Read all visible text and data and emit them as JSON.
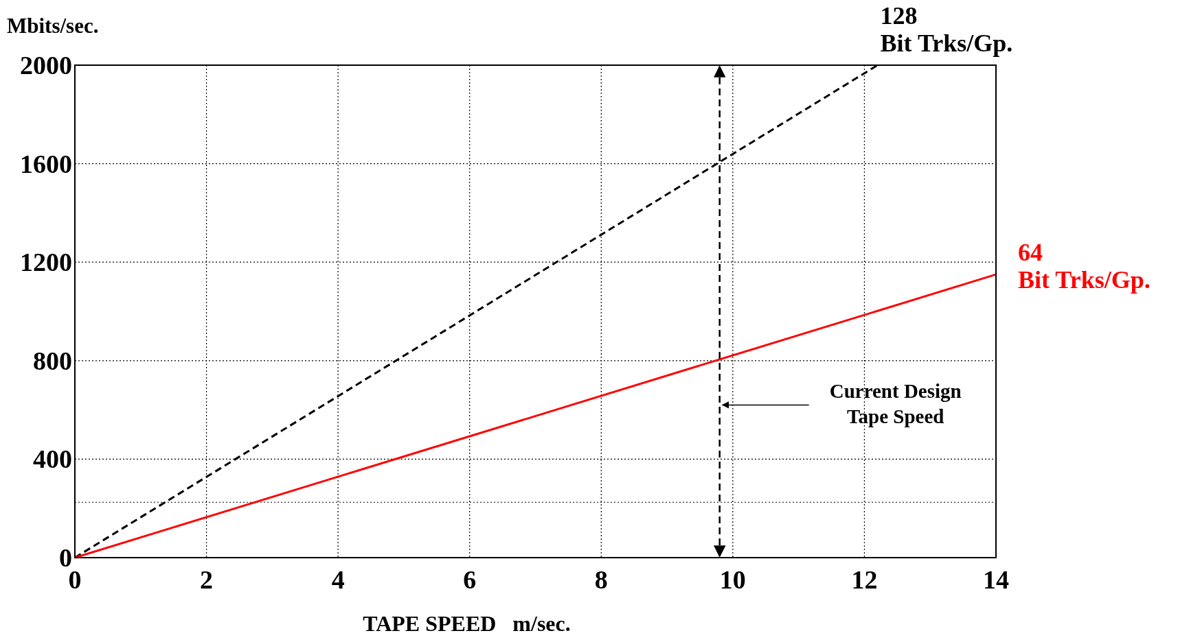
{
  "chart_data": {
    "type": "line",
    "xlabel": "TAPE SPEED   m/sec.",
    "ylabel": "Mbits/sec.",
    "xlim": [
      0,
      14
    ],
    "xticks": [
      0,
      2,
      4,
      6,
      8,
      10,
      12,
      14
    ],
    "ylim": [
      0,
      2000
    ],
    "yticks": [
      0,
      400,
      800,
      1200,
      1600,
      2000
    ],
    "grid": true,
    "marker": "none",
    "series": [
      {
        "name": "128 Bit Trks/Gp.",
        "color": "#000000",
        "line_style": "dashed",
        "x": [
          0,
          12.2
        ],
        "values": [
          0,
          2000
        ]
      },
      {
        "name": "64 Bit Trks/Gp.",
        "color": "#ff0000",
        "line_style": "solid",
        "x": [
          0,
          14
        ],
        "values": [
          0,
          1150
        ]
      }
    ],
    "ref_lines": [
      {
        "axis": "x",
        "value": 9.8,
        "label": "Current Design Tape Speed",
        "color": "#000000",
        "line_style": "dashed"
      },
      {
        "axis": "y",
        "value": 225,
        "color": "#000000",
        "line_style": "dotted"
      }
    ]
  }
}
